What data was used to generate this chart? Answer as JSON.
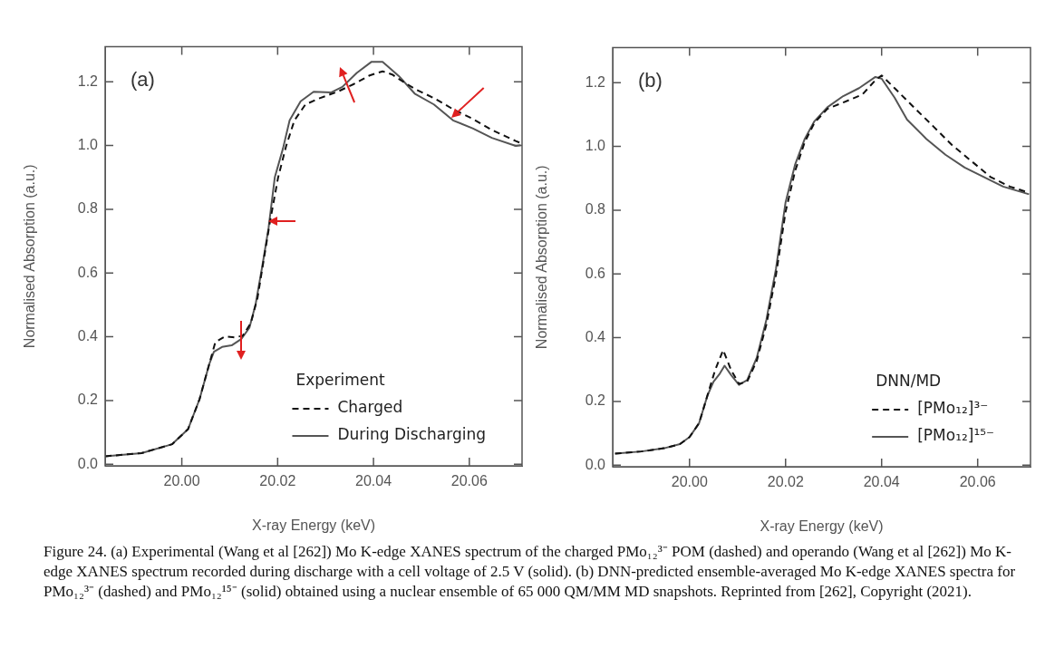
{
  "chart_data": [
    {
      "type": "line",
      "title": "(a)",
      "xlabel": "X-ray Energy (keV)",
      "ylabel": "Normalised Absorption (a.u.)",
      "legend_title": "Experiment",
      "legend": "bottom right",
      "grid": false,
      "marker": "none",
      "xlim": [
        19.984,
        20.071
      ],
      "ylim": [
        -0.005,
        1.31
      ],
      "xticks": [
        {
          "value": 20.0,
          "label": "20.00"
        },
        {
          "value": 20.02,
          "label": "20.02"
        },
        {
          "value": 20.04,
          "label": "20.04"
        },
        {
          "value": 20.06,
          "label": "20.06"
        }
      ],
      "yticks": [
        {
          "value": 0,
          "label": "0.0"
        },
        {
          "value": 0.2,
          "label": "0.2"
        },
        {
          "value": 0.4,
          "label": "0.4"
        },
        {
          "value": 0.6,
          "label": "0.6"
        },
        {
          "value": 0.8,
          "label": "0.8"
        },
        {
          "value": 1.0,
          "label": "1.0"
        },
        {
          "value": 1.2,
          "label": "1.2"
        }
      ],
      "series": [
        {
          "name": "Charged",
          "color": "#111111",
          "line_style": "dashed",
          "x": [
            19.984,
            19.9916,
            19.998,
            20.0013,
            20.0037,
            20.0057,
            20.007,
            20.009,
            20.011,
            20.0127,
            20.0144,
            20.0158,
            20.0171,
            20.0184,
            20.0201,
            20.0218,
            20.0235,
            20.0258,
            20.0285,
            20.0325,
            20.0359,
            20.0392,
            20.0419,
            20.0439,
            20.0459,
            20.0486,
            20.0526,
            20.0566,
            20.0607,
            20.0647,
            20.0697,
            20.0707
          ],
          "values": [
            0.025,
            0.035,
            0.063,
            0.11,
            0.204,
            0.313,
            0.383,
            0.401,
            0.398,
            0.403,
            0.443,
            0.522,
            0.642,
            0.761,
            0.9,
            1.0,
            1.079,
            1.129,
            1.147,
            1.169,
            1.193,
            1.22,
            1.233,
            1.223,
            1.203,
            1.178,
            1.149,
            1.114,
            1.084,
            1.049,
            1.014,
            1.008
          ]
        },
        {
          "name": "During Discharging",
          "color": "#555555",
          "line_style": "solid",
          "x": [
            19.984,
            19.9916,
            19.998,
            20.0013,
            20.0037,
            20.0057,
            20.0067,
            20.0084,
            20.0104,
            20.0124,
            20.0141,
            20.0154,
            20.0168,
            20.0181,
            20.0194,
            20.0211,
            20.0225,
            20.0248,
            20.0275,
            20.0312,
            20.0335,
            20.0365,
            20.0396,
            20.0419,
            20.0453,
            20.0486,
            20.0526,
            20.0566,
            20.0607,
            20.0647,
            20.0697,
            20.0707
          ],
          "values": [
            0.025,
            0.035,
            0.063,
            0.11,
            0.204,
            0.313,
            0.353,
            0.368,
            0.373,
            0.393,
            0.428,
            0.502,
            0.622,
            0.741,
            0.9,
            0.99,
            1.079,
            1.139,
            1.169,
            1.167,
            1.184,
            1.228,
            1.263,
            1.263,
            1.218,
            1.163,
            1.129,
            1.079,
            1.054,
            1.024,
            0.999,
            1.001
          ]
        }
      ],
      "annotations": [
        "Figure 24. (a) Experimental (Wang et al [262]) Mo K-edge XANES spectrum of the charged PMo₁₂³⁻ POM (dashed) and operando (Wang et al [262]) Mo K-edge XANES spectrum recorded during discharge with a cell voltage of 2.5 V (solid). (b) DNN-predicted ensemble-averaged Mo K-edge XANES spectra for PMo₁₂³⁻ (dashed) and PMo₁₂¹⁵⁻ (solid) obtained using a nuclear ensemble of 65 000 QM/MM MD snapshots. Reprinted from [262], Copyright (2021)."
      ]
    },
    {
      "type": "line",
      "title": "(b)",
      "xlabel": "X-ray Energy (keV)",
      "ylabel": "Normalised Absorption (a.u.)",
      "legend_title": "DNN/MD",
      "legend": "bottom right",
      "grid": false,
      "marker": "none",
      "xlim": [
        19.984,
        20.071
      ],
      "ylim": [
        -0.005,
        1.31
      ],
      "xticks": [
        {
          "value": 20.0,
          "label": "20.00"
        },
        {
          "value": 20.02,
          "label": "20.02"
        },
        {
          "value": 20.04,
          "label": "20.04"
        },
        {
          "value": 20.06,
          "label": "20.06"
        }
      ],
      "yticks": [
        {
          "value": 0,
          "label": "0.0"
        },
        {
          "value": 0.2,
          "label": "0.2"
        },
        {
          "value": 0.4,
          "label": "0.4"
        },
        {
          "value": 0.6,
          "label": "0.6"
        },
        {
          "value": 0.8,
          "label": "0.8"
        },
        {
          "value": 1.0,
          "label": "1.0"
        },
        {
          "value": 1.2,
          "label": "1.2"
        }
      ],
      "series": [
        {
          "name": "[PMo₁₂]³⁻",
          "color": "#111111",
          "line_style": "dashed",
          "x": [
            19.9845,
            19.99,
            19.9947,
            19.998,
            20.0,
            20.002,
            20.004,
            20.0053,
            20.007,
            20.0087,
            20.0103,
            20.012,
            20.014,
            20.016,
            20.018,
            20.02,
            20.022,
            20.024,
            20.026,
            20.0287,
            20.032,
            20.036,
            20.0387,
            20.04,
            20.0427,
            20.0467,
            20.0507,
            20.0547,
            20.0587,
            20.0627,
            20.0667,
            20.0707
          ],
          "values": [
            0.036,
            0.043,
            0.053,
            0.066,
            0.088,
            0.132,
            0.232,
            0.297,
            0.361,
            0.297,
            0.255,
            0.262,
            0.327,
            0.441,
            0.596,
            0.795,
            0.924,
            1.014,
            1.074,
            1.118,
            1.138,
            1.163,
            1.208,
            1.223,
            1.183,
            1.123,
            1.064,
            1.004,
            0.954,
            0.904,
            0.874,
            0.855
          ]
        },
        {
          "name": "[PMo₁₂]¹⁵⁻",
          "color": "#555555",
          "line_style": "solid",
          "x": [
            19.9845,
            19.99,
            19.9947,
            19.998,
            20.0,
            20.002,
            20.0037,
            20.005,
            20.0063,
            20.0073,
            20.0087,
            20.0103,
            20.012,
            20.014,
            20.016,
            20.018,
            20.02,
            20.022,
            20.024,
            20.026,
            20.0287,
            20.032,
            20.0353,
            20.0387,
            20.04,
            20.0427,
            20.0453,
            20.0493,
            20.0533,
            20.0573,
            20.0613,
            20.0653,
            20.0707
          ],
          "values": [
            0.036,
            0.043,
            0.053,
            0.066,
            0.088,
            0.132,
            0.217,
            0.262,
            0.287,
            0.312,
            0.282,
            0.252,
            0.267,
            0.337,
            0.456,
            0.616,
            0.825,
            0.944,
            1.024,
            1.079,
            1.123,
            1.158,
            1.183,
            1.218,
            1.213,
            1.153,
            1.084,
            1.024,
            0.974,
            0.934,
            0.904,
            0.874,
            0.85
          ]
        }
      ]
    }
  ]
}
